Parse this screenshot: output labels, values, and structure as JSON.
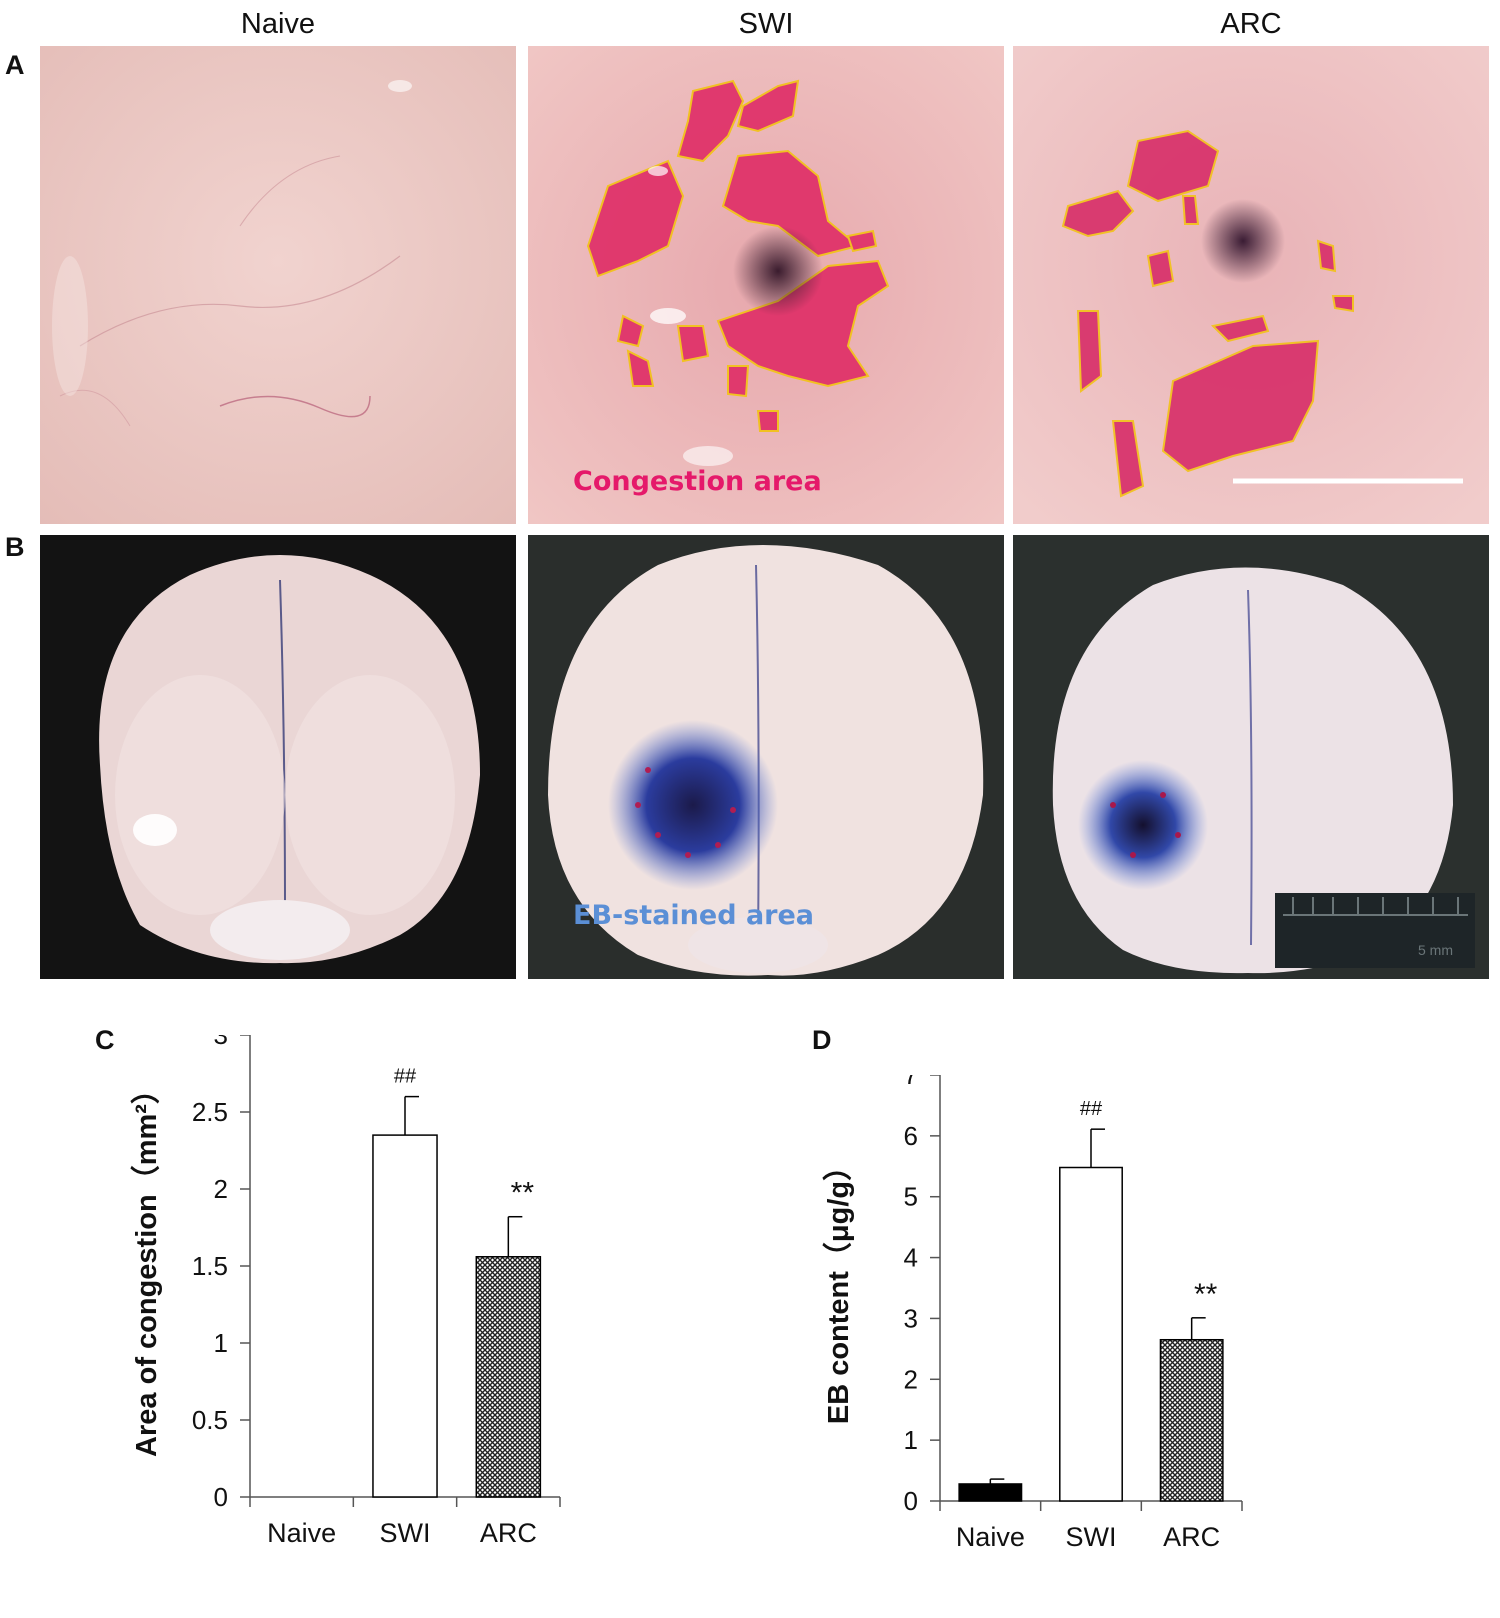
{
  "panel_labels": {
    "a": "A",
    "b": "B",
    "c": "C",
    "d": "D"
  },
  "columns": [
    "Naive",
    "SWI",
    "ARC"
  ],
  "photo_annotations": {
    "congestion": "Congestion area",
    "congestion_color": "#e5196a",
    "eb_stained": "EB-stained area",
    "eb_color": "#5b8fd6",
    "ruler_label": "5 mm",
    "outline_color": "#f2c21b"
  },
  "chart_data": [
    {
      "type": "bar",
      "categories": [
        "Naive",
        "SWI",
        "ARC"
      ],
      "values": [
        0,
        2.35,
        1.56
      ],
      "errors": [
        0,
        0.25,
        0.26
      ],
      "annotations": [
        "",
        "##",
        "**"
      ],
      "fills": [
        "black",
        "white",
        "crosshatch"
      ],
      "ylabel": "Area of congestion（mm²）",
      "ylim": [
        0,
        3
      ],
      "yticks": [
        "0",
        "0.5",
        "1",
        "1.5",
        "2",
        "2.5",
        "3"
      ],
      "grid": false,
      "legend": "none"
    },
    {
      "type": "bar",
      "categories": [
        "Naive",
        "SWI",
        "ARC"
      ],
      "values": [
        0.28,
        5.48,
        2.65
      ],
      "errors": [
        0.08,
        0.63,
        0.36
      ],
      "annotations": [
        "",
        "##",
        "**"
      ],
      "fills": [
        "black",
        "white",
        "crosshatch"
      ],
      "ylabel": "EB content（μg/g）",
      "ylim": [
        0,
        7
      ],
      "yticks": [
        "0",
        "1",
        "2",
        "3",
        "4",
        "5",
        "6",
        "7"
      ],
      "grid": false,
      "legend": "none"
    }
  ]
}
